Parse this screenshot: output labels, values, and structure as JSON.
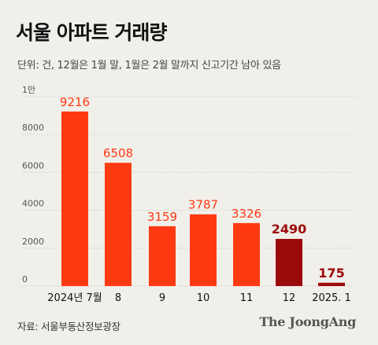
{
  "title": "서울 아파트 거래량",
  "subtitle": "단위: 건, 12월은 1월 말, 1월은 2월 말까지 신고기간 남아 있음",
  "source": "자료: 서울부동산정보광장",
  "brand": "The JoongAng",
  "colors": {
    "primary": "#ff3a12",
    "highlight": "#9b0a0a",
    "grid": "#cfcdc7",
    "axis_text": "#555555",
    "background": "#f1efea"
  },
  "chart_data": {
    "type": "bar",
    "categories": [
      "2024년 7월",
      "8",
      "9",
      "10",
      "11",
      "12",
      "2025. 1"
    ],
    "values": [
      9216,
      6508,
      3159,
      3787,
      3326,
      2490,
      175
    ],
    "highlighted_categories": [
      "12",
      "2025. 1"
    ],
    "ylim": [
      0,
      10000
    ],
    "yticks": [
      0,
      2000,
      4000,
      6000,
      8000,
      10000
    ],
    "ytick_labels": [
      "0",
      "2000",
      "4000",
      "6000",
      "8000",
      "1만"
    ],
    "grid": true,
    "xlabel": "",
    "ylabel": ""
  }
}
